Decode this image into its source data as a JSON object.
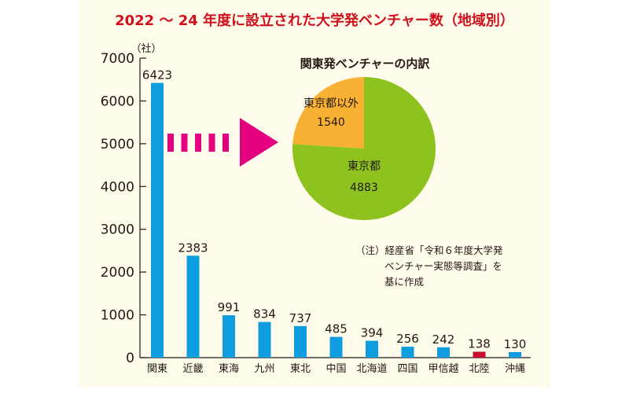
{
  "chart_data": [
    {
      "type": "bar",
      "title": "2022 ～ 24 年度に設立された大学発ベンチャー数（地域別）",
      "ylabel": "（社）",
      "xlabel": "",
      "ylim": [
        0,
        7000
      ],
      "yticks": [
        0,
        1000,
        2000,
        3000,
        4000,
        5000,
        6000,
        7000
      ],
      "grid": false,
      "categories": [
        "関東",
        "近畿",
        "東海",
        "九州",
        "東北",
        "中国",
        "北海道",
        "四国",
        "甲信越",
        "北陸",
        "沖縄"
      ],
      "values": [
        6423,
        2383,
        991,
        834,
        737,
        485,
        394,
        256,
        242,
        138,
        130
      ],
      "highlight_category": "北陸",
      "bar_color": "#0e9ee0",
      "highlight_color": "#c8102e"
    },
    {
      "type": "pie",
      "title": "関東発ベンチャーの内訳",
      "slices": [
        {
          "label": "東京都以外",
          "value": 1540,
          "color": "#f8b133"
        },
        {
          "label": "東京都",
          "value": 4883,
          "color": "#8dc21f"
        }
      ]
    }
  ],
  "arrow_color": "#e4007f",
  "note": {
    "lines": [
      "（注）経産省「令和６年度大学発",
      "ベンチャー実態等調査」を",
      "基に作成"
    ]
  }
}
